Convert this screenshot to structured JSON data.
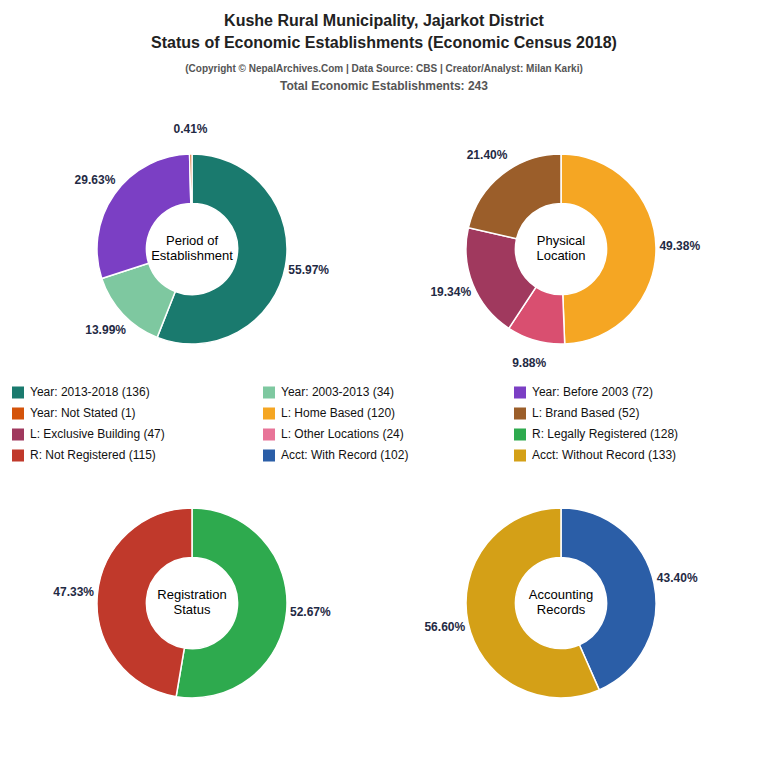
{
  "title": [
    "Kushe Rural Municipality, Jajarkot District",
    "Status of Economic Establishments (Economic Census 2018)"
  ],
  "subtitle": [
    "(Copyright © NepalArchives.Com | Data Source: CBS | Creator/Analyst: Milan Karki)",
    "Total Economic Establishments: 243"
  ],
  "chart_data": [
    {
      "type": "pie",
      "title": "Period of\nEstablishment",
      "values": [
        55.97,
        13.99,
        29.63,
        0.41
      ],
      "value_labels": [
        "55.97%",
        "13.99%",
        "29.63%",
        "0.41%"
      ],
      "colors": [
        "#1a7a6e",
        "#7ec8a0",
        "#7b3fc4",
        "#d4530a"
      ],
      "data_labels": true
    },
    {
      "type": "pie",
      "title": "Physical\nLocation",
      "values": [
        49.38,
        9.88,
        19.34,
        21.4
      ],
      "value_labels": [
        "49.38%",
        "9.88%",
        "19.34%",
        "21.40%"
      ],
      "colors": [
        "#f5a623",
        "#d94f70",
        "#a0395e",
        "#9b5e2a"
      ],
      "data_labels": true
    },
    {
      "type": "pie",
      "title": "Registration\nStatus",
      "values": [
        52.67,
        47.33
      ],
      "value_labels": [
        "52.67%",
        "47.33%"
      ],
      "colors": [
        "#2eaa4e",
        "#c0392b"
      ],
      "data_labels": true
    },
    {
      "type": "pie",
      "title": "Accounting\nRecords",
      "values": [
        43.4,
        56.6
      ],
      "value_labels": [
        "43.40%",
        "56.60%"
      ],
      "colors": [
        "#2b5ea7",
        "#d4a017"
      ],
      "data_labels": true
    }
  ],
  "legend_items": [
    {
      "name": "Year: 2013-2018 (136)",
      "color": "#1a7a6e"
    },
    {
      "name": "Year: 2003-2013 (34)",
      "color": "#7ec8a0"
    },
    {
      "name": "Year: Before 2003 (72)",
      "color": "#7b3fc4"
    },
    {
      "name": "Year: Not Stated (1)",
      "color": "#d4530a"
    },
    {
      "name": "L: Home Based (120)",
      "color": "#f5a623"
    },
    {
      "name": "L: Brand Based (52)",
      "color": "#9b5e2a"
    },
    {
      "name": "L: Exclusive Building (47)",
      "color": "#a0395e"
    },
    {
      "name": "L: Other Locations (24)",
      "color": "#e87498"
    },
    {
      "name": "R: Legally Registered (128)",
      "color": "#2eaa4e"
    },
    {
      "name": "R: Not Registered (115)",
      "color": "#c0392b"
    },
    {
      "name": "Acct: With Record (102)",
      "color": "#2b5ea7"
    },
    {
      "name": "Acct: Without Record (133)",
      "color": "#d4a017"
    }
  ]
}
